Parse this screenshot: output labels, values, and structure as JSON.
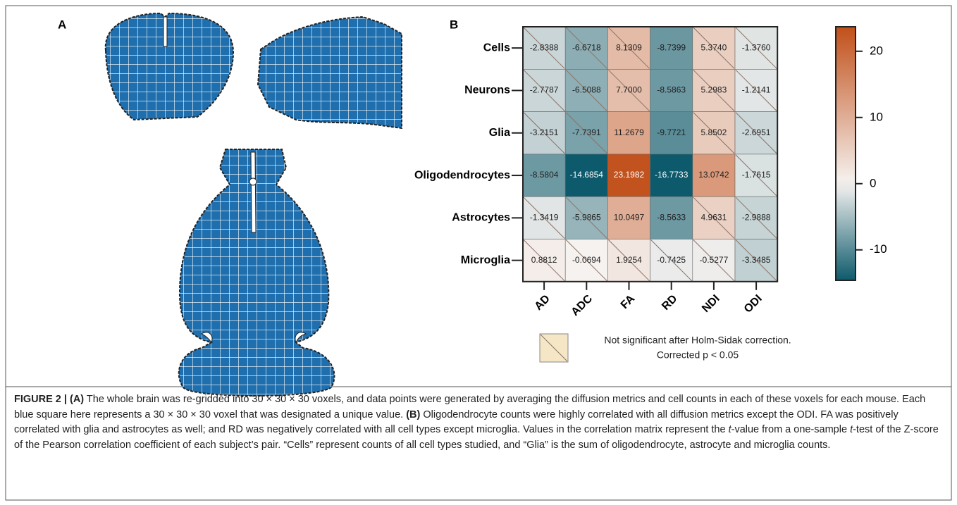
{
  "panels": {
    "a_label": "A",
    "b_label": "B"
  },
  "chart_data": {
    "type": "heatmap",
    "rows": [
      "Cells",
      "Neurons",
      "Glia",
      "Oligodendrocytes",
      "Astrocytes",
      "Microglia"
    ],
    "columns": [
      "AD",
      "ADC",
      "FA",
      "RD",
      "NDI",
      "ODI"
    ],
    "values": [
      [
        -2.8388,
        -6.6718,
        8.1309,
        -8.7399,
        5.374,
        -1.376
      ],
      [
        -2.7787,
        -6.5088,
        7.7,
        -8.5863,
        5.2983,
        -1.2141
      ],
      [
        -3.2151,
        -7.7391,
        11.2679,
        -9.7721,
        5.8502,
        -2.6951
      ],
      [
        -8.5804,
        -14.6854,
        23.1982,
        -16.7733,
        13.0742,
        -1.7615
      ],
      [
        -1.3419,
        -5.9865,
        10.0497,
        -8.5633,
        4.9631,
        -2.9888
      ],
      [
        0.8812,
        -0.0694,
        1.9254,
        -0.7425,
        -0.5277,
        -3.3485
      ]
    ],
    "value_labels": [
      [
        "-2.8388",
        "-6.6718",
        "8.1309",
        "-8.7399",
        "5.3740",
        "-1.3760"
      ],
      [
        "-2.7787",
        "-6.5088",
        "7.7000",
        "-8.5863",
        "5.2983",
        "-1.2141"
      ],
      [
        "-3.2151",
        "-7.7391",
        "11.2679",
        "-9.7721",
        "5.8502",
        "-2.6951"
      ],
      [
        "-8.5804",
        "-14.6854",
        "23.1982",
        "-16.7733",
        "13.0742",
        "-1.7615"
      ],
      [
        "-1.3419",
        "-5.9865",
        "10.0497",
        "-8.5633",
        "4.9631",
        "-2.9888"
      ],
      [
        "0.8812",
        "-0.0694",
        "1.9254",
        "-0.7425",
        "-0.5277",
        "-3.3485"
      ]
    ],
    "significant": [
      [
        false,
        false,
        false,
        true,
        false,
        false
      ],
      [
        false,
        false,
        false,
        true,
        false,
        false
      ],
      [
        false,
        false,
        true,
        true,
        false,
        false
      ],
      [
        true,
        true,
        true,
        true,
        true,
        false
      ],
      [
        false,
        false,
        true,
        true,
        false,
        false
      ],
      [
        false,
        false,
        false,
        false,
        false,
        false
      ]
    ],
    "colors": {
      "low": "#0d5a6c",
      "mid": "#f6f3f1",
      "high": "#c1501a"
    },
    "clim": [
      -14.6,
      23.7
    ],
    "cticks": [
      20,
      10,
      0,
      -10
    ],
    "legend": {
      "swatch_color": "#f5e6c6",
      "text": [
        "Not significant after Holm-Sidak correction.",
        "Corrected p < 0.05"
      ]
    }
  },
  "caption": [
    {
      "text": "FIGURE 2 | (A)",
      "bold": true,
      "italic": false
    },
    {
      "text": " The whole brain was re-gridded into 30 × 30 × 30 voxels, and data points were generated by averaging the diffusion metrics and cell counts in each of these voxels for each mouse. Each blue square here represents a 30 × 30 × 30 voxel that was designated a unique value. ",
      "bold": false,
      "italic": false
    },
    {
      "text": "(B)",
      "bold": true,
      "italic": false
    },
    {
      "text": " Oligodendrocyte counts were highly correlated with all diffusion metrics except the ODI. FA was positively correlated with glia and astrocytes as well; and RD was negatively correlated with all cell types except microglia. Values in the correlation matrix represent the ",
      "bold": false,
      "italic": false
    },
    {
      "text": "t",
      "bold": false,
      "italic": true
    },
    {
      "text": "-value from a one-sample ",
      "bold": false,
      "italic": false
    },
    {
      "text": "t",
      "bold": false,
      "italic": true
    },
    {
      "text": "-test of the Z-score of the Pearson correlation coefficient of each subject’s pair. “Cells” represent counts of all cell types studied, and “Glia” is the sum of oligodendrocyte, astrocyte and microglia counts.",
      "bold": false,
      "italic": false
    }
  ]
}
